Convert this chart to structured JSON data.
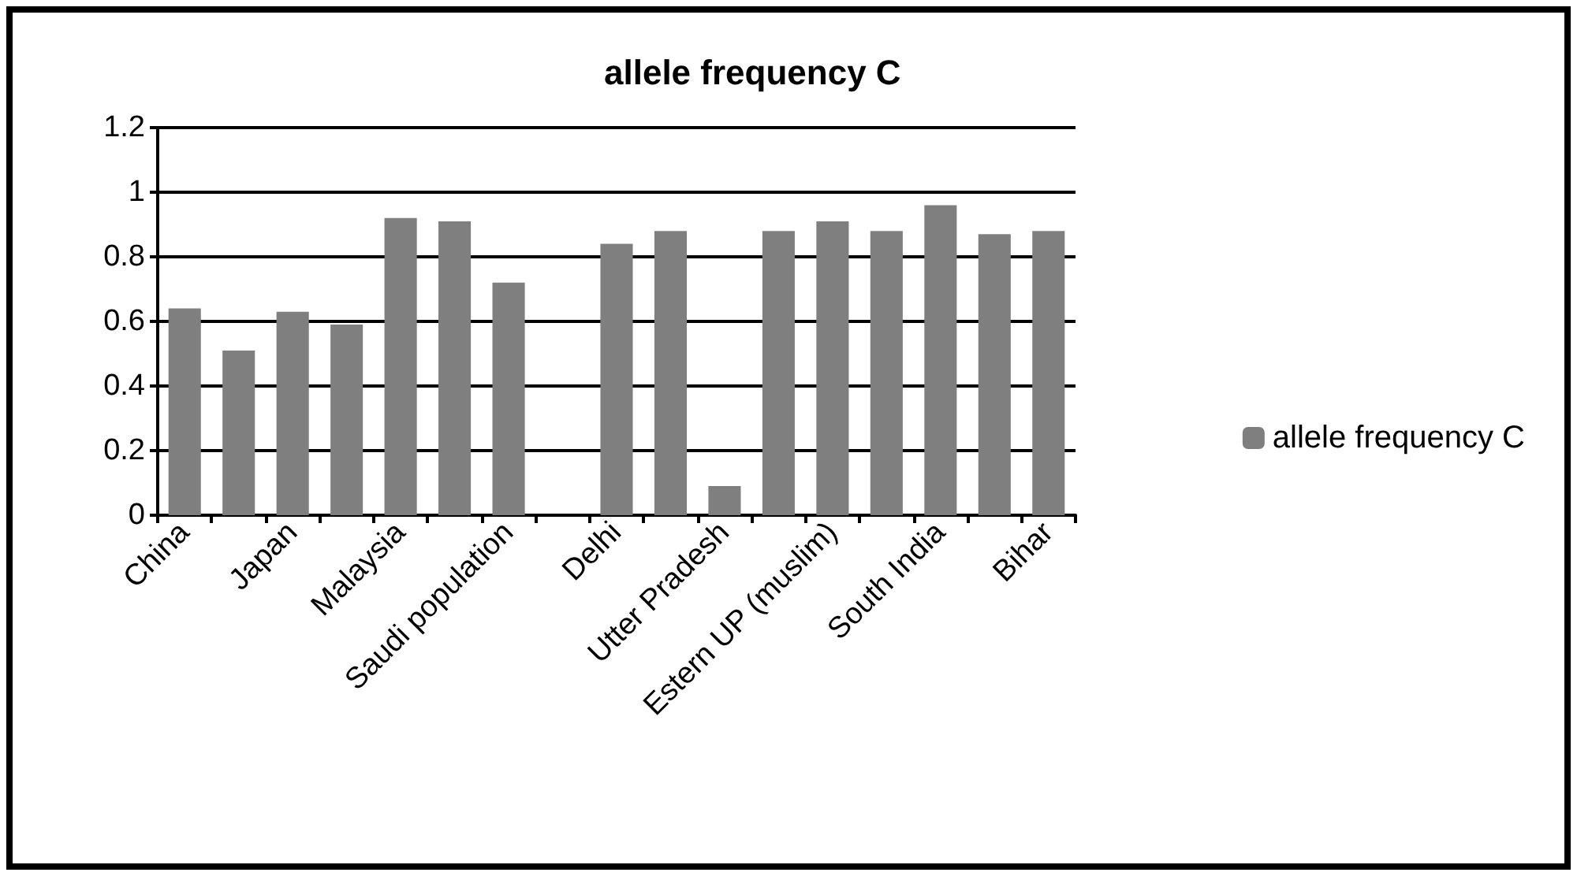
{
  "chart_data": {
    "type": "bar",
    "title": "allele frequency C",
    "categories": [
      "China",
      null,
      "Japan",
      null,
      "Malaysia",
      null,
      "Saudi population",
      null,
      "Delhi",
      null,
      "Utter Pradesh",
      null,
      "Estern UP (muslim)",
      null,
      "South India",
      null,
      "Bihar"
    ],
    "series": [
      {
        "name": "allele frequency C",
        "color": "#7f7f7f",
        "values": [
          0.64,
          0.51,
          0.63,
          0.59,
          0.92,
          0.91,
          0.72,
          null,
          0.84,
          0.88,
          0.09,
          0.88,
          0.91,
          0.88,
          0.96,
          0.87,
          0.88
        ]
      }
    ],
    "ylim": [
      0,
      1.2
    ],
    "yticks": [
      0,
      0.2,
      0.4,
      0.6,
      0.8,
      1,
      1.2
    ],
    "grid": "y",
    "legend": "right"
  }
}
